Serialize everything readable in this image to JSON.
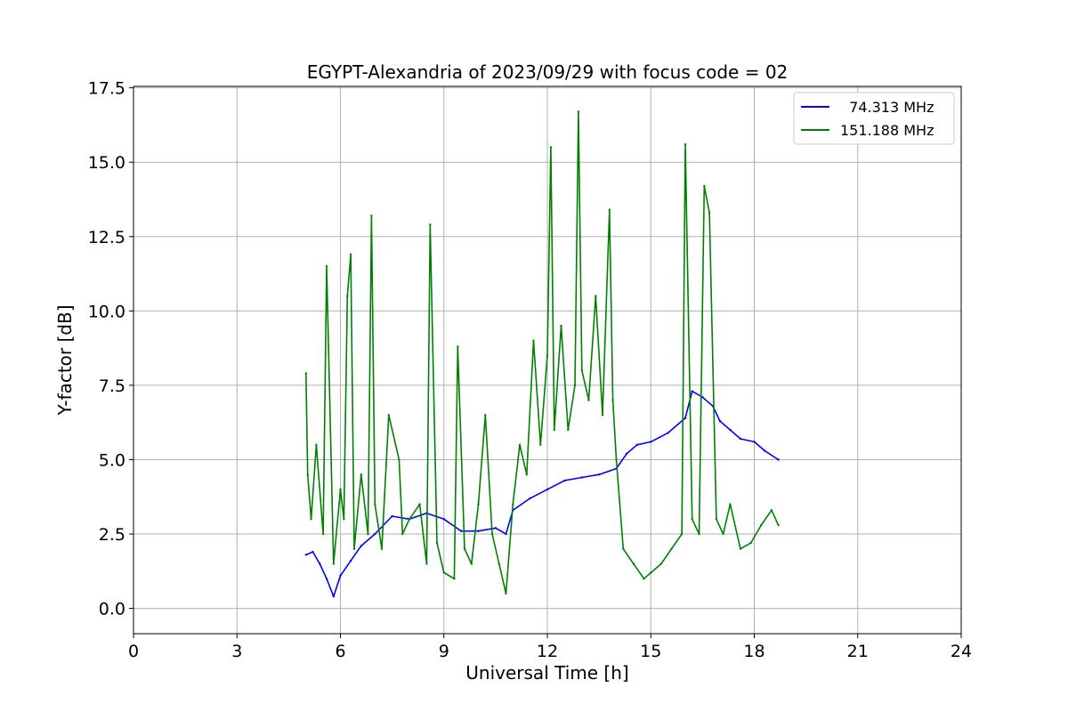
{
  "chart_data": {
    "type": "line",
    "title": "EGYPT-Alexandria of 2023/09/29 with focus code = 02",
    "xlabel": "Universal Time [h]",
    "ylabel": "Y-factor [dB]",
    "xlim": [
      0,
      24
    ],
    "ylim": [
      -0.85,
      17.55
    ],
    "xticks": [
      0,
      3,
      6,
      9,
      12,
      15,
      18,
      21,
      24
    ],
    "yticks": [
      0.0,
      2.5,
      5.0,
      7.5,
      10.0,
      12.5,
      15.0,
      17.5
    ],
    "xtick_labels": [
      "0",
      "3",
      "6",
      "9",
      "12",
      "15",
      "18",
      "21",
      "24"
    ],
    "ytick_labels": [
      "0.0",
      "2.5",
      "5.0",
      "7.5",
      "10.0",
      "12.5",
      "15.0",
      "17.5"
    ],
    "grid": true,
    "legend_position": "top-right",
    "series": [
      {
        "name": "  74.313 MHz",
        "color": "#0000ff",
        "x": [
          5.0,
          5.2,
          5.4,
          5.6,
          5.8,
          6.0,
          6.3,
          6.6,
          7.0,
          7.5,
          8.0,
          8.5,
          9.0,
          9.5,
          10.0,
          10.5,
          10.8,
          11.0,
          11.5,
          12.0,
          12.5,
          13.0,
          13.5,
          14.0,
          14.3,
          14.6,
          15.0,
          15.5,
          16.0,
          16.2,
          16.5,
          16.8,
          17.0,
          17.3,
          17.6,
          18.0,
          18.3,
          18.7
        ],
        "y": [
          1.8,
          1.9,
          1.5,
          1.0,
          0.4,
          1.1,
          1.6,
          2.1,
          2.5,
          3.1,
          3.0,
          3.2,
          3.0,
          2.6,
          2.6,
          2.7,
          2.5,
          3.3,
          3.7,
          4.0,
          4.3,
          4.4,
          4.5,
          4.7,
          5.2,
          5.5,
          5.6,
          5.9,
          6.4,
          7.3,
          7.1,
          6.8,
          6.3,
          6.0,
          5.7,
          5.6,
          5.3,
          5.0
        ]
      },
      {
        "name": "151.188 MHz",
        "color": "#008000",
        "x": [
          5.0,
          5.05,
          5.15,
          5.3,
          5.5,
          5.6,
          5.8,
          6.0,
          6.1,
          6.2,
          6.3,
          6.4,
          6.6,
          6.8,
          6.9,
          7.0,
          7.2,
          7.4,
          7.7,
          7.8,
          8.0,
          8.3,
          8.5,
          8.6,
          8.8,
          9.0,
          9.3,
          9.4,
          9.6,
          9.8,
          10.0,
          10.2,
          10.4,
          10.6,
          10.8,
          11.0,
          11.2,
          11.4,
          11.6,
          11.8,
          12.0,
          12.1,
          12.2,
          12.4,
          12.6,
          12.8,
          12.9,
          13.0,
          13.2,
          13.4,
          13.6,
          13.8,
          13.9,
          14.0,
          14.2,
          14.5,
          14.8,
          15.0,
          15.3,
          15.6,
          15.9,
          16.0,
          16.2,
          16.4,
          16.55,
          16.7,
          16.9,
          17.1,
          17.3,
          17.6,
          17.9,
          18.2,
          18.5,
          18.7
        ],
        "y": [
          7.9,
          4.5,
          3.0,
          5.5,
          2.5,
          11.5,
          1.5,
          4.0,
          3.0,
          10.5,
          11.9,
          2.0,
          4.5,
          2.5,
          13.2,
          3.5,
          2.0,
          6.5,
          5.0,
          2.5,
          3.0,
          3.5,
          1.5,
          12.9,
          2.2,
          1.2,
          1.0,
          8.8,
          2.0,
          1.5,
          3.5,
          6.5,
          2.5,
          1.5,
          0.5,
          3.5,
          5.5,
          4.5,
          9.0,
          5.5,
          8.5,
          15.5,
          6.0,
          9.5,
          6.0,
          7.5,
          16.7,
          8.0,
          7.0,
          10.5,
          6.5,
          13.4,
          7.0,
          5.0,
          2.0,
          1.5,
          1.0,
          1.2,
          1.5,
          2.0,
          2.5,
          15.6,
          3.0,
          2.5,
          14.2,
          13.3,
          3.0,
          2.5,
          3.5,
          2.0,
          2.2,
          2.8,
          3.3,
          2.8
        ]
      }
    ]
  }
}
